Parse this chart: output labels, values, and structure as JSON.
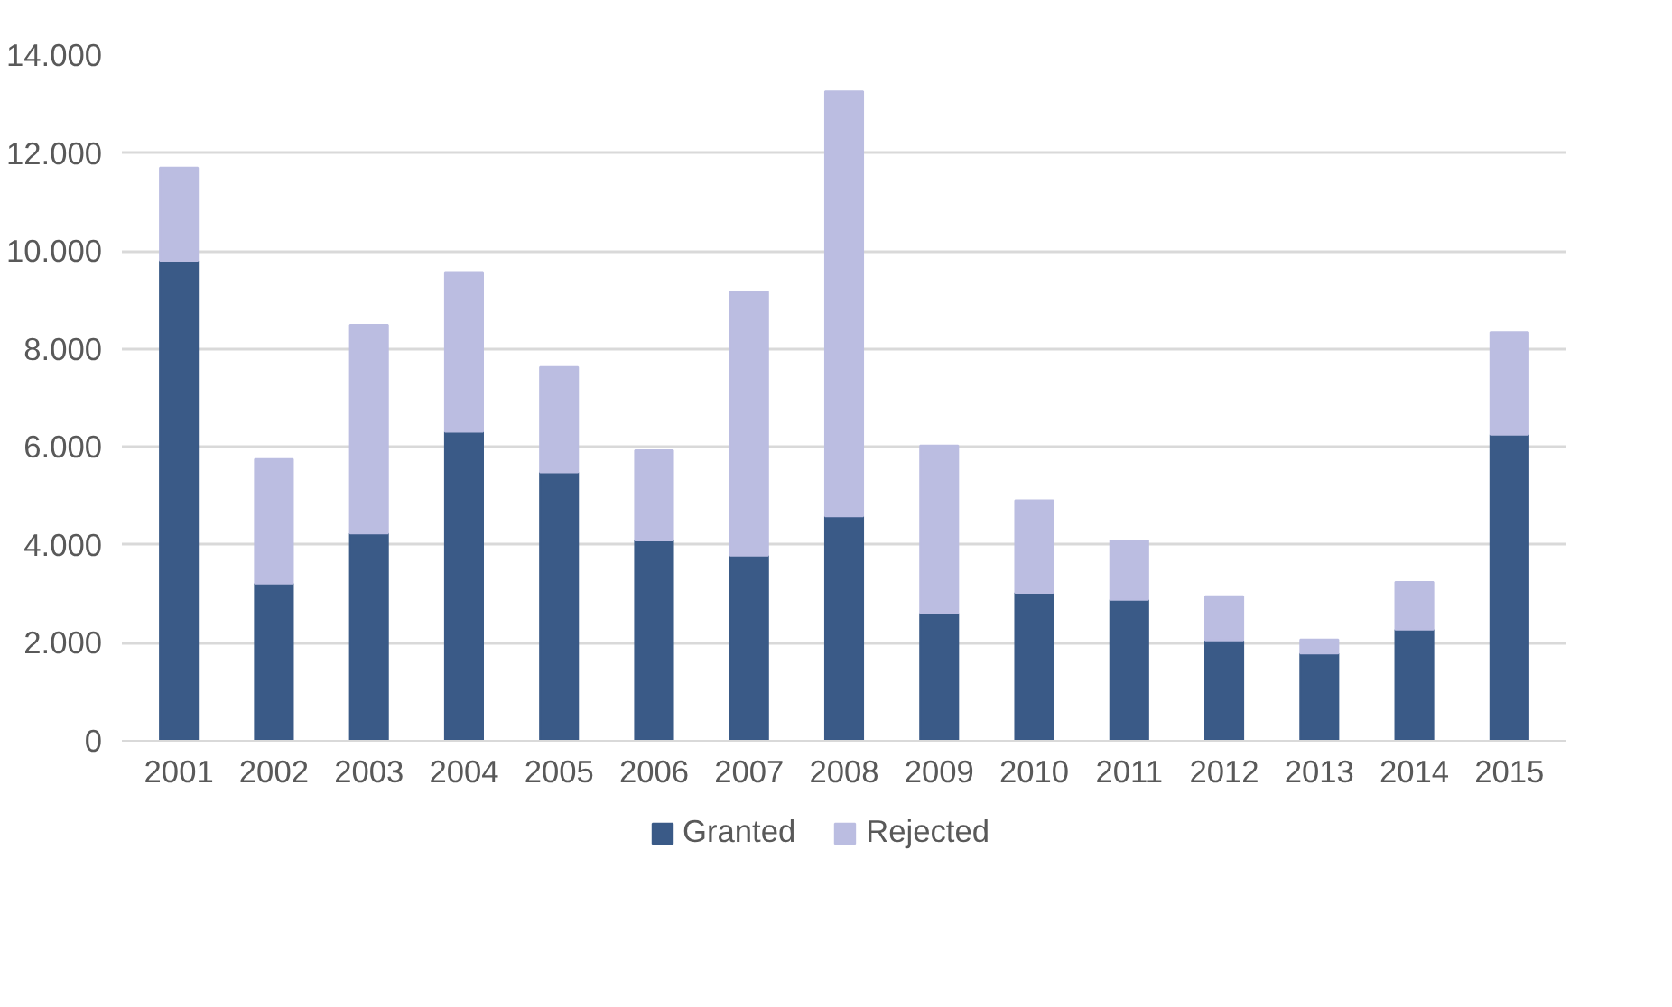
{
  "chart_data": {
    "type": "bar",
    "stacked": true,
    "categories": [
      "2001",
      "2002",
      "2003",
      "2004",
      "2005",
      "2006",
      "2007",
      "2008",
      "2009",
      "2010",
      "2011",
      "2012",
      "2013",
      "2014",
      "2015"
    ],
    "series": [
      {
        "name": "Granted",
        "color": "#3a5a87",
        "values": [
          9800,
          3210,
          4230,
          6310,
          5480,
          4090,
          3780,
          4580,
          2600,
          3020,
          2880,
          2050,
          1780,
          2270,
          6250
        ]
      },
      {
        "name": "Rejected",
        "color": "#bbbde1",
        "values": [
          1900,
          2540,
          4260,
          3260,
          2150,
          1840,
          5390,
          8680,
          3430,
          1890,
          1210,
          900,
          290,
          970,
          2090
        ]
      }
    ],
    "ylim": [
      0,
      14000
    ],
    "yticks": [
      0,
      {
        "value": 2000,
        "label": "2.000"
      },
      {
        "value": 4000,
        "label": "4.000"
      },
      {
        "value": 6000,
        "label": "6.000"
      },
      {
        "value": 8000,
        "label": "8.000"
      },
      {
        "value": 10000,
        "label": "10.000"
      },
      {
        "value": 12000,
        "label": "12.000"
      },
      {
        "value": 14000,
        "label": "14.000"
      }
    ],
    "grid": "y",
    "legend": "bottom"
  }
}
